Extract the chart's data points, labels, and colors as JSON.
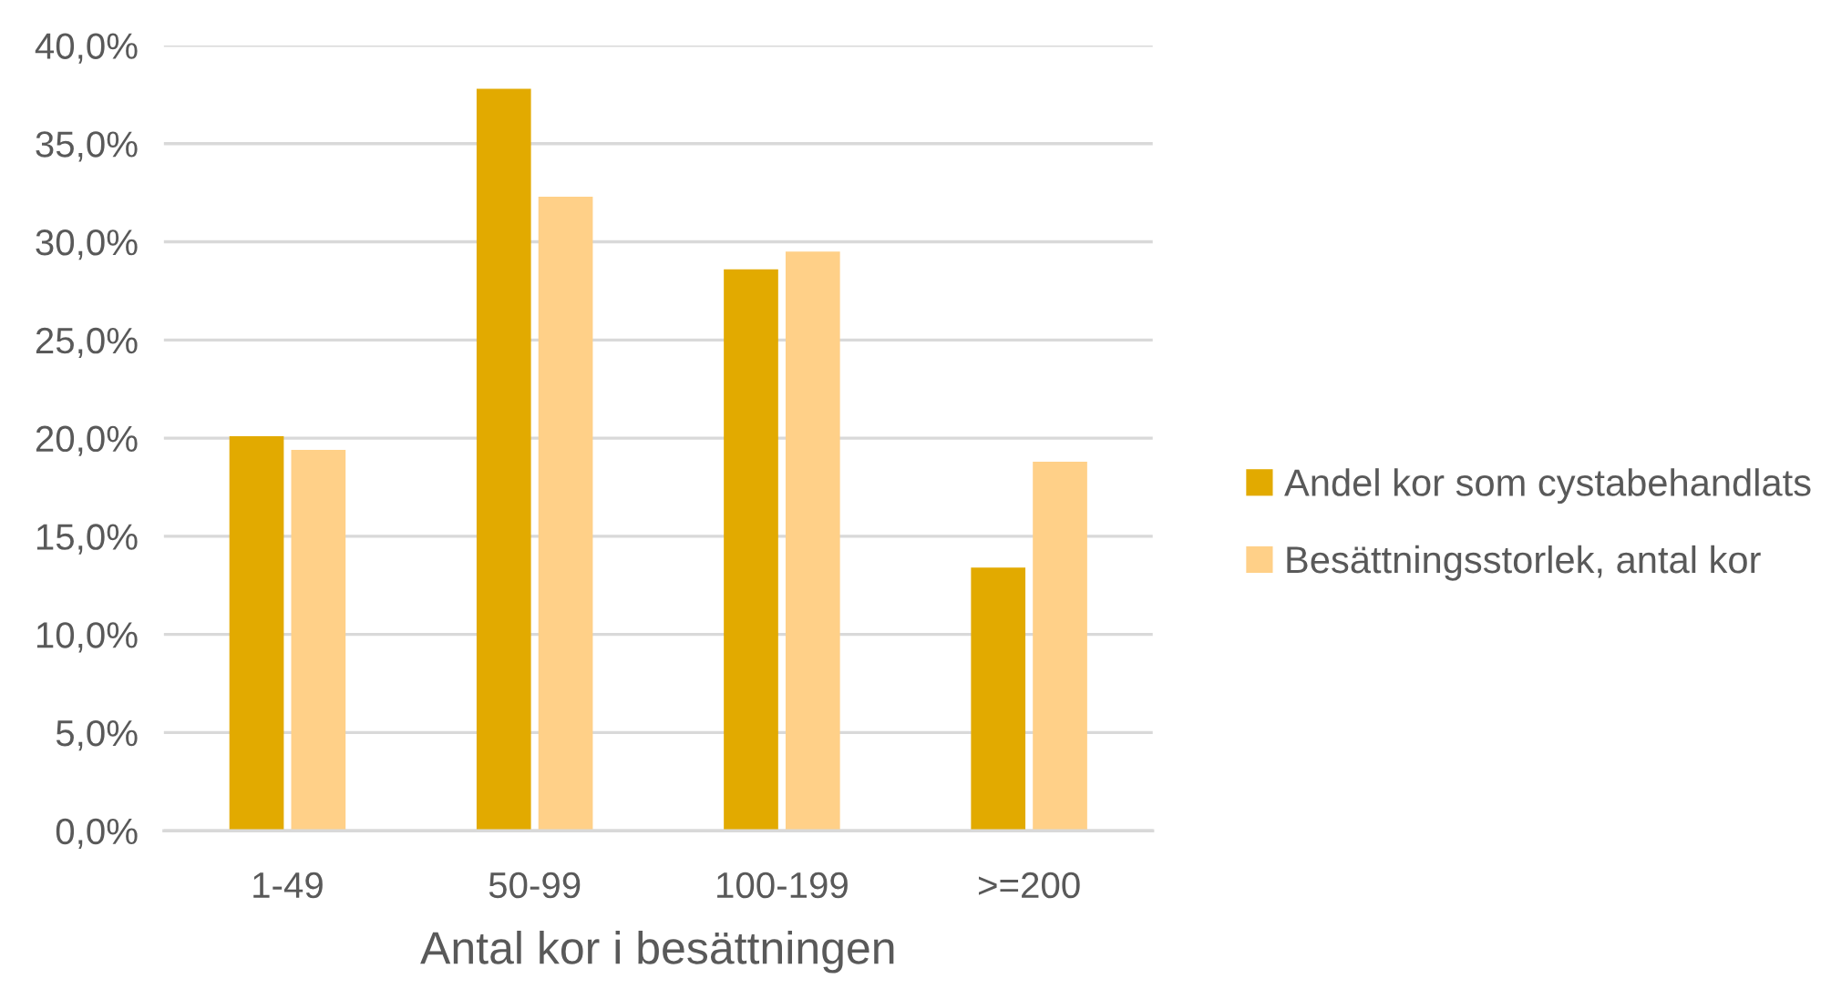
{
  "chart_data": {
    "type": "bar",
    "xlabel": "Antal kor i besättningen",
    "categories": [
      "1-49",
      "50-99",
      "100-199",
      ">=200"
    ],
    "series": [
      {
        "name": "Andel kor som cystabehandlats",
        "color": "#e2aa00",
        "values": [
          20.1,
          37.8,
          28.6,
          13.4
        ]
      },
      {
        "name": "Besättningsstorlek, antal kor",
        "color": "#ffd088",
        "values": [
          19.4,
          32.3,
          29.5,
          18.8
        ]
      }
    ],
    "ylim": [
      0,
      40
    ],
    "yticks": [
      {
        "value": 0,
        "label": "0,0%"
      },
      {
        "value": 5,
        "label": "5,0%"
      },
      {
        "value": 10,
        "label": "10,0%"
      },
      {
        "value": 15,
        "label": "15,0%"
      },
      {
        "value": 20,
        "label": "20,0%"
      },
      {
        "value": 25,
        "label": "25,0%"
      },
      {
        "value": 30,
        "label": "30,0%"
      },
      {
        "value": 35,
        "label": "35,0%"
      },
      {
        "value": 40,
        "label": "40,0%"
      }
    ],
    "grid": "y",
    "legend": "right"
  }
}
